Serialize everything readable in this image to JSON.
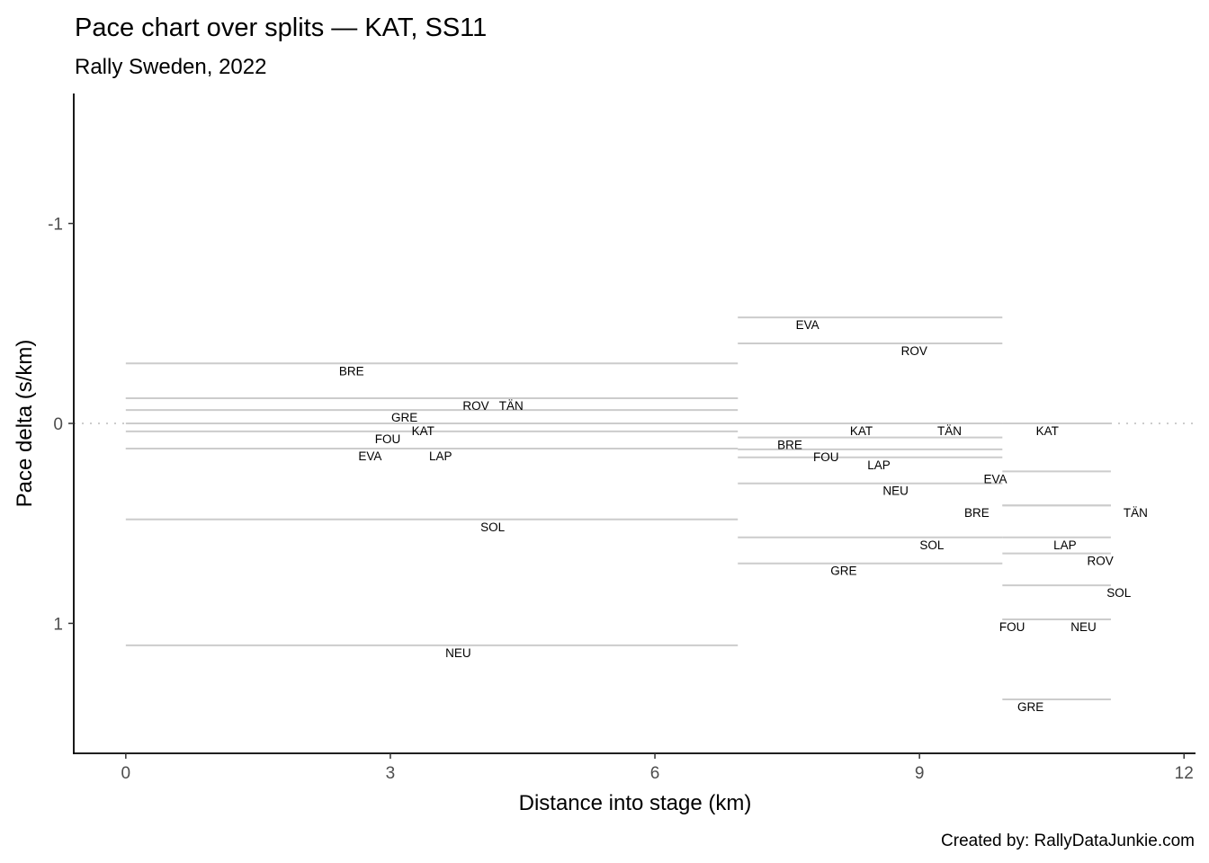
{
  "chart_data": {
    "type": "line",
    "title": "Pace chart over splits — KAT, SS11",
    "subtitle": "Rally Sweden, 2022",
    "xlabel": "Distance into stage (km)",
    "ylabel": "Pace delta (s/km)",
    "caption": "Created by: RallyDataJunkie.com",
    "xlim": [
      -0.59,
      12.13
    ],
    "ylim": [
      -1.65,
      1.65
    ],
    "y_reversed": true,
    "xticks": [
      0,
      3,
      6,
      9,
      12
    ],
    "xtick_labels": [
      "0",
      "3",
      "6",
      "9",
      "12"
    ],
    "yticks": [
      -1,
      0,
      1
    ],
    "ytick_labels": [
      "-1",
      "0",
      "1"
    ],
    "reference_line": 0,
    "grid": false,
    "line_color": "#cccccc",
    "splits": [
      {
        "start": 0,
        "end": 6.94,
        "series": [
          {
            "name": "BRE",
            "pace": -0.3,
            "label_x": 2.56
          },
          {
            "name": "ROV",
            "pace": -0.126,
            "label_x": 3.97
          },
          {
            "name": "TÄN",
            "pace": -0.126,
            "label_x": 4.37
          },
          {
            "name": "GRE",
            "pace": -0.067,
            "label_x": 3.16
          },
          {
            "name": "KAT",
            "pace": 0,
            "label_x": 3.37
          },
          {
            "name": "FOU",
            "pace": 0.04,
            "label_x": 2.97
          },
          {
            "name": "EVA",
            "pace": 0.126,
            "label_x": 2.77
          },
          {
            "name": "LAP",
            "pace": 0.126,
            "label_x": 3.57
          },
          {
            "name": "SOL",
            "pace": 0.48,
            "label_x": 4.16
          },
          {
            "name": "NEU",
            "pace": 1.11,
            "label_x": 3.77
          }
        ]
      },
      {
        "start": 6.94,
        "end": 9.94,
        "series": [
          {
            "name": "EVA",
            "pace": -0.53,
            "label_x": 7.73
          },
          {
            "name": "ROV",
            "pace": -0.4,
            "label_x": 8.94
          },
          {
            "name": "KAT",
            "pace": 0,
            "label_x": 8.34
          },
          {
            "name": "TÄN",
            "pace": 0,
            "label_x": 9.34
          },
          {
            "name": "BRE",
            "pace": 0.07,
            "label_x": 7.53
          },
          {
            "name": "FOU",
            "pace": 0.13,
            "label_x": 7.94
          },
          {
            "name": "LAP",
            "pace": 0.17,
            "label_x": 8.54
          },
          {
            "name": "NEU",
            "pace": 0.3,
            "label_x": 8.73
          },
          {
            "name": "SOL",
            "pace": 0.57,
            "label_x": 9.14
          },
          {
            "name": "GRE",
            "pace": 0.7,
            "label_x": 8.14
          }
        ]
      },
      {
        "start": 9.94,
        "end": 11.17,
        "series": [
          {
            "name": "KAT",
            "pace": 0,
            "label_x": 10.45
          },
          {
            "name": "EVA",
            "pace": 0.24,
            "label_x": 9.86
          },
          {
            "name": "BRE",
            "pace": 0.41,
            "label_x": 9.65
          },
          {
            "name": "TÄN",
            "pace": 0.41,
            "label_x": 11.45
          },
          {
            "name": "LAP",
            "pace": 0.57,
            "label_x": 10.65
          },
          {
            "name": "ROV",
            "pace": 0.65,
            "label_x": 11.05
          },
          {
            "name": "SOL",
            "pace": 0.81,
            "label_x": 11.26
          },
          {
            "name": "FOU",
            "pace": 0.98,
            "label_x": 10.05
          },
          {
            "name": "NEU",
            "pace": 0.98,
            "label_x": 10.86
          },
          {
            "name": "GRE",
            "pace": 1.38,
            "label_x": 10.26
          }
        ]
      }
    ]
  }
}
